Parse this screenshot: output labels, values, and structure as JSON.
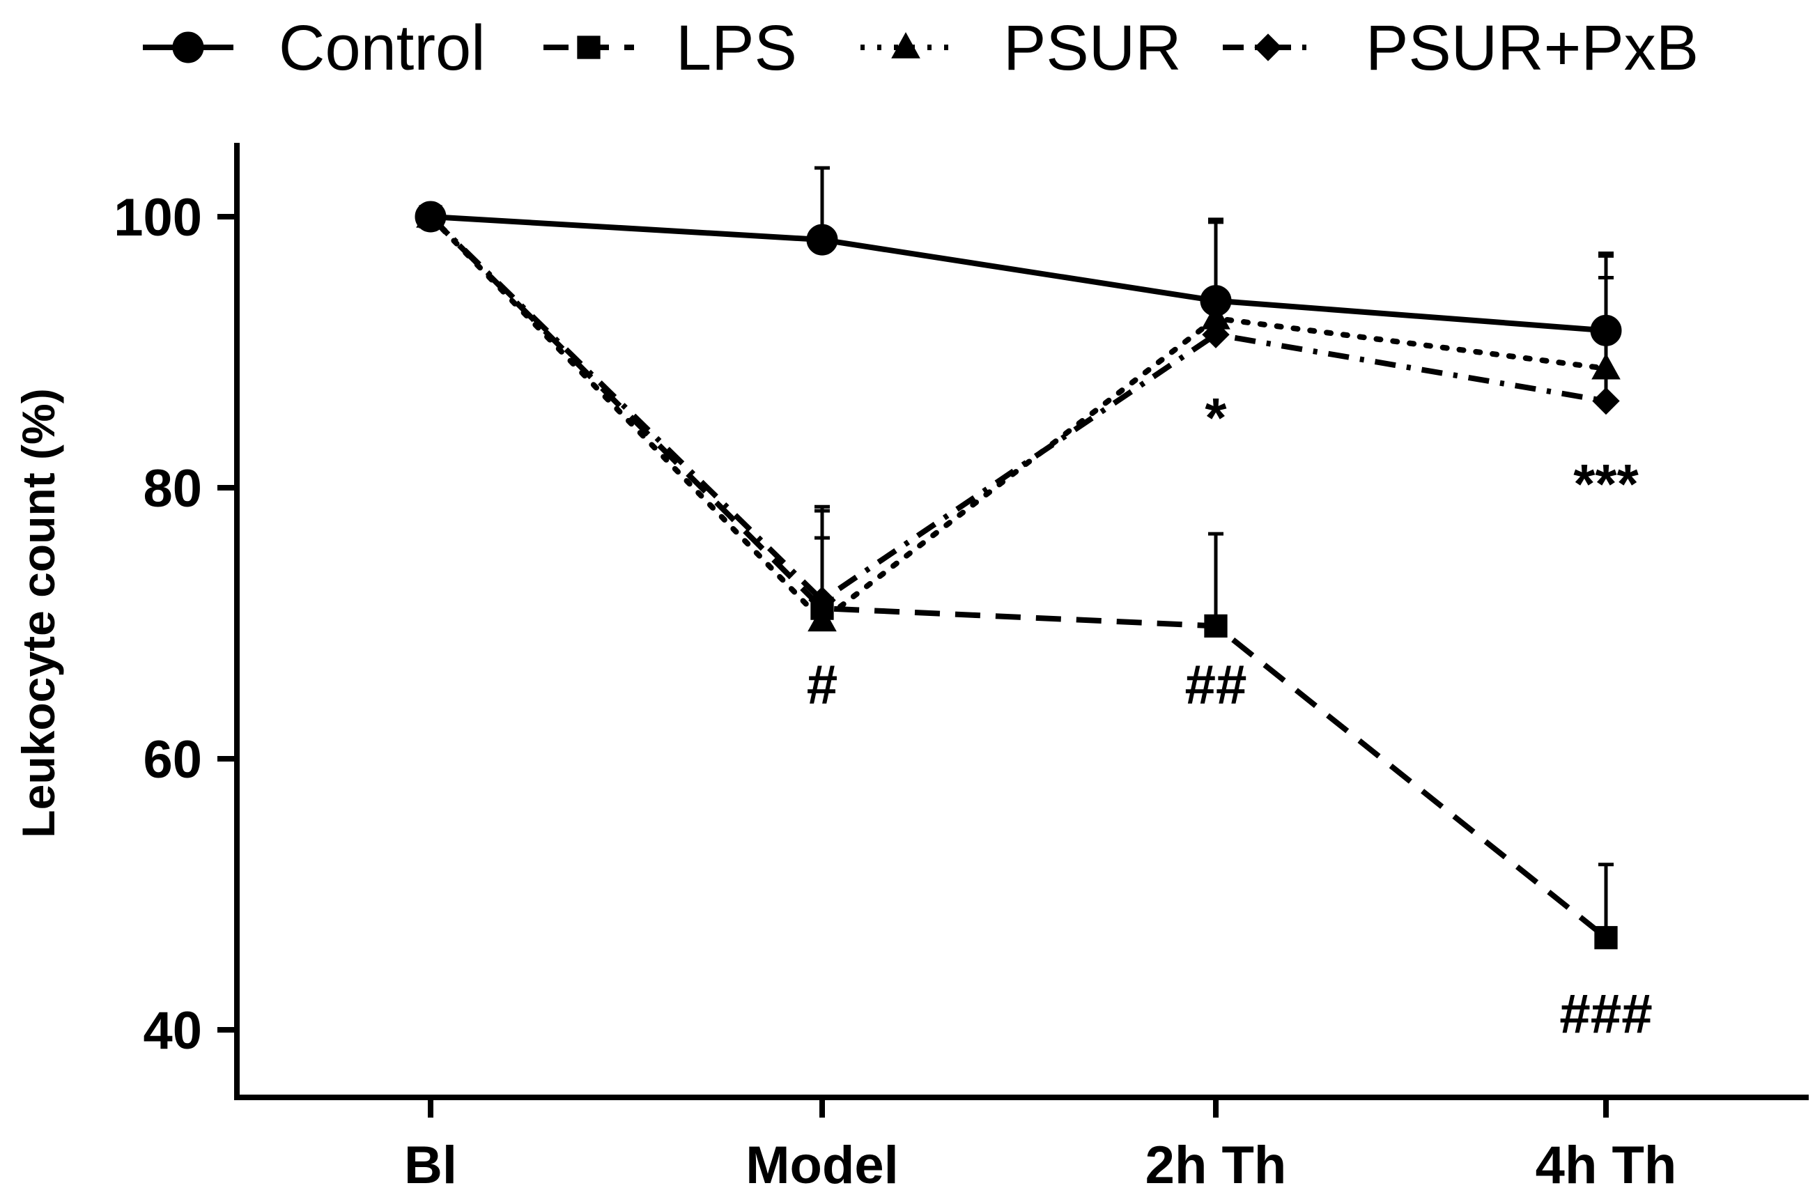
{
  "chart_data": {
    "type": "line",
    "title": "",
    "xlabel": "",
    "ylabel": "Leukocyte count (%)",
    "categories": [
      "Bl",
      "Model",
      "2h Th",
      "4h Th"
    ],
    "ylim": [
      35,
      105
    ],
    "yticks": [
      40,
      60,
      80,
      100
    ],
    "grid": false,
    "legend_position": "top",
    "series": [
      {
        "name": "Control",
        "values": [
          100,
          98.3,
          93.8,
          91.6
        ],
        "error": [
          0,
          5.3,
          5.8,
          5.7
        ],
        "line_style": "solid",
        "marker": "circle",
        "color": "#000000"
      },
      {
        "name": "LPS",
        "values": [
          100,
          71.1,
          69.8,
          46.8
        ],
        "error": [
          0,
          7.2,
          6.8,
          5.4
        ],
        "line_style": "dashed",
        "marker": "square",
        "color": "#000000"
      },
      {
        "name": "PSUR",
        "values": [
          100,
          70.2,
          92.5,
          88.8
        ],
        "error": [
          0,
          8.4,
          7.3,
          8.3
        ],
        "line_style": "dotted",
        "marker": "triangle",
        "color": "#000000"
      },
      {
        "name": "PSUR+PxB",
        "values": [
          100,
          71.7,
          91.3,
          86.4
        ],
        "error": [
          0,
          4.6,
          8.3,
          9.1
        ],
        "line_style": "dashdot",
        "marker": "diamond",
        "color": "#000000"
      }
    ],
    "annotations": [
      {
        "text": "#",
        "category": "Model",
        "y": 65.5
      },
      {
        "text": "##",
        "category": "2h Th",
        "y": 65.5
      },
      {
        "text": "*",
        "category": "2h Th",
        "y": 85.2
      },
      {
        "text": "***",
        "category": "4h Th",
        "y": 80.3
      },
      {
        "text": "###",
        "category": "4h Th",
        "y": 41.2
      }
    ]
  }
}
